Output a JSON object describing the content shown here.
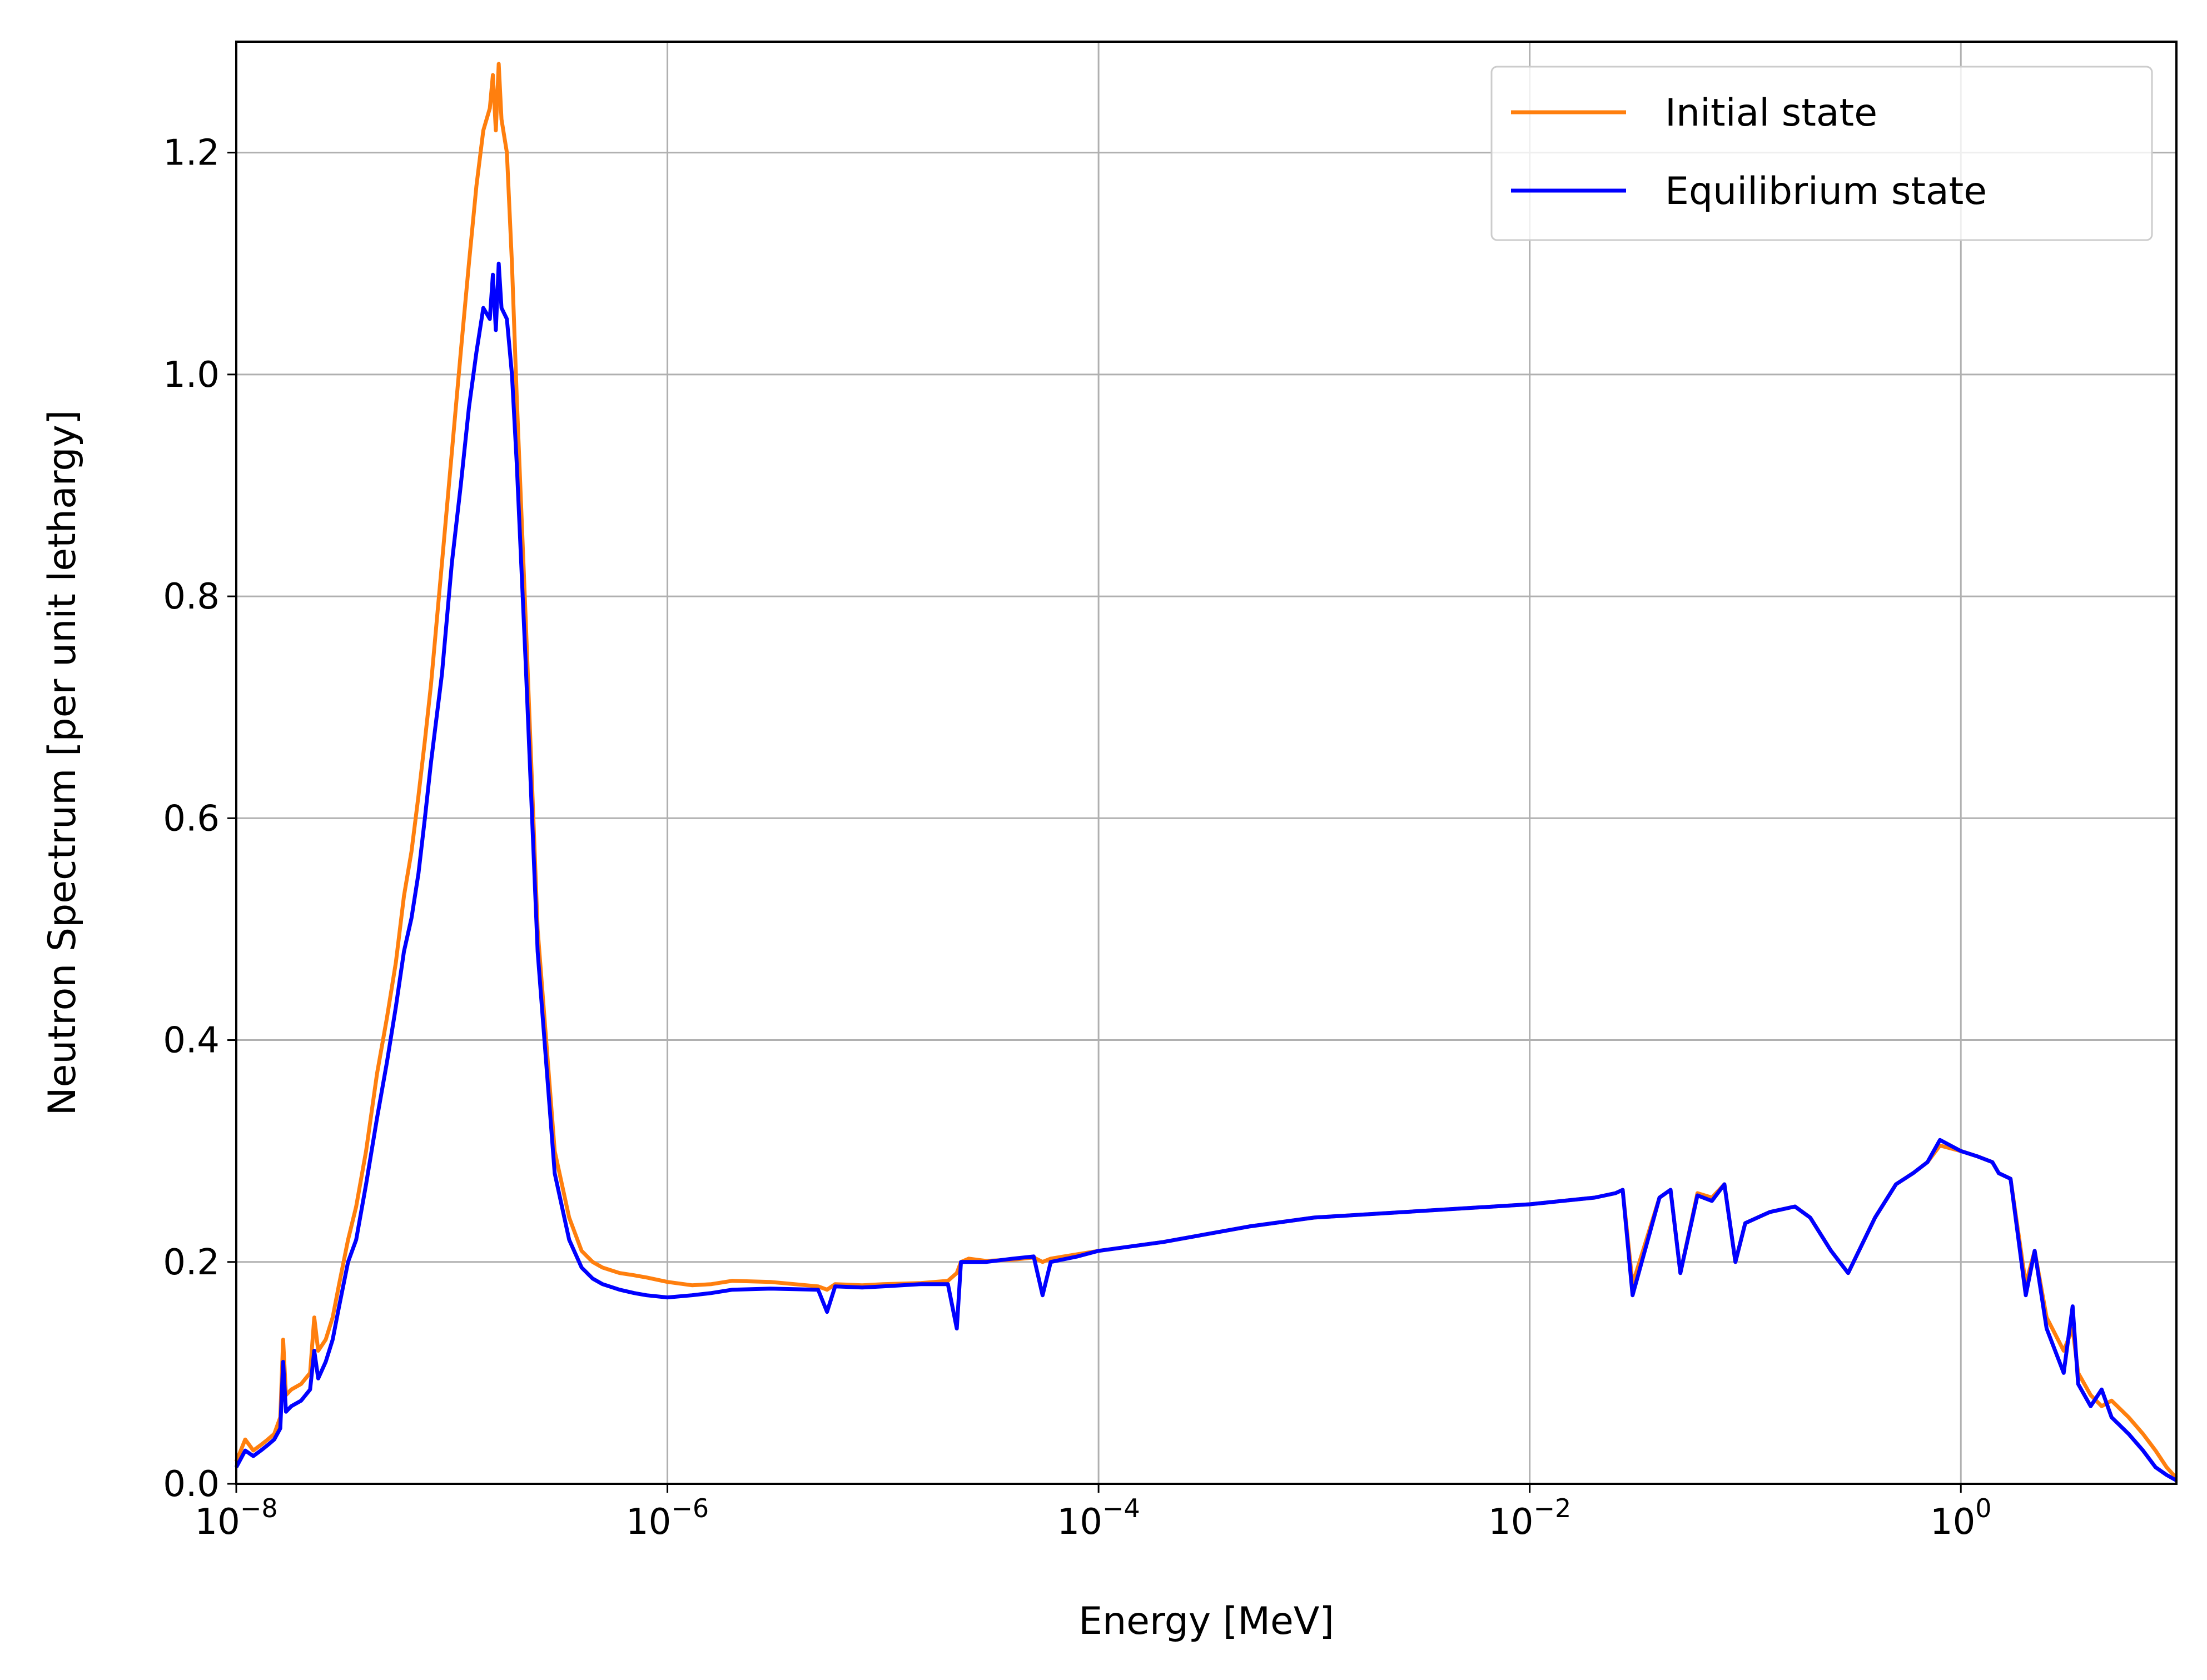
{
  "chart_data": {
    "type": "line",
    "title": "",
    "xlabel": "Energy [MeV]",
    "ylabel": "Neutron Spectrum [per unit lethargy]",
    "xscale": "log",
    "xlim": [
      1e-08,
      10
    ],
    "ylim": [
      0,
      1.3
    ],
    "grid": true,
    "legend_position": "top-right",
    "x_ticks": [
      {
        "base": "10",
        "exp": "−8"
      },
      {
        "base": "10",
        "exp": "−6"
      },
      {
        "base": "10",
        "exp": "−4"
      },
      {
        "base": "10",
        "exp": "−2"
      },
      {
        "base": "10",
        "exp": "0"
      }
    ],
    "y_ticks": [
      "0.0",
      "0.2",
      "0.4",
      "0.6",
      "0.8",
      "1.0",
      "1.2"
    ],
    "series": [
      {
        "name": "Initial state",
        "color": "#ff7f0e",
        "x": [
          1e-08,
          1.1e-08,
          1.2e-08,
          1.3e-08,
          1.4e-08,
          1.5e-08,
          1.6e-08,
          1.65e-08,
          1.7e-08,
          1.8e-08,
          2e-08,
          2.2e-08,
          2.3e-08,
          2.4e-08,
          2.6e-08,
          2.8e-08,
          3e-08,
          3.3e-08,
          3.6e-08,
          4e-08,
          4.5e-08,
          5e-08,
          5.5e-08,
          6e-08,
          6.5e-08,
          7e-08,
          7.5e-08,
          8e-08,
          9e-08,
          1e-07,
          1.1e-07,
          1.2e-07,
          1.3e-07,
          1.4e-07,
          1.5e-07,
          1.55e-07,
          1.6e-07,
          1.65e-07,
          1.7e-07,
          1.8e-07,
          1.9e-07,
          2e-07,
          2.2e-07,
          2.5e-07,
          3e-07,
          3.5e-07,
          4e-07,
          4.5e-07,
          5e-07,
          6e-07,
          7e-07,
          8e-07,
          1e-06,
          1.3e-06,
          1.6e-06,
          2e-06,
          3e-06,
          5e-06,
          5.5e-06,
          6e-06,
          8e-06,
          1e-05,
          1.5e-05,
          2e-05,
          2.2e-05,
          2.3e-05,
          2.5e-05,
          3e-05,
          4e-05,
          5e-05,
          5.5e-05,
          6e-05,
          8e-05,
          0.0001,
          0.0002,
          0.0005,
          0.001,
          0.01,
          0.02,
          0.025,
          0.027,
          0.03,
          0.04,
          0.045,
          0.05,
          0.06,
          0.07,
          0.08,
          0.09,
          0.1,
          0.13,
          0.17,
          0.2,
          0.25,
          0.3,
          0.4,
          0.5,
          0.6,
          0.7,
          0.8,
          1,
          1.2,
          1.4,
          1.5,
          1.7,
          2,
          2.2,
          2.5,
          3,
          3.3,
          3.5,
          4,
          4.5,
          5,
          6,
          7,
          8,
          9,
          10
        ],
        "y": [
          0.02,
          0.04,
          0.03,
          0.035,
          0.04,
          0.045,
          0.06,
          0.13,
          0.08,
          0.085,
          0.09,
          0.1,
          0.15,
          0.12,
          0.13,
          0.15,
          0.18,
          0.22,
          0.25,
          0.3,
          0.37,
          0.42,
          0.47,
          0.53,
          0.57,
          0.62,
          0.67,
          0.72,
          0.83,
          0.93,
          1.02,
          1.1,
          1.17,
          1.22,
          1.24,
          1.27,
          1.22,
          1.28,
          1.23,
          1.2,
          1.1,
          0.98,
          0.78,
          0.5,
          0.3,
          0.24,
          0.21,
          0.2,
          0.195,
          0.19,
          0.188,
          0.186,
          0.182,
          0.179,
          0.18,
          0.183,
          0.182,
          0.178,
          0.175,
          0.18,
          0.179,
          0.18,
          0.181,
          0.183,
          0.19,
          0.2,
          0.203,
          0.201,
          0.202,
          0.204,
          0.2,
          0.203,
          0.207,
          0.21,
          0.218,
          0.232,
          0.24,
          0.252,
          0.258,
          0.262,
          0.265,
          0.18,
          0.258,
          0.265,
          0.19,
          0.262,
          0.258,
          0.27,
          0.2,
          0.235,
          0.245,
          0.25,
          0.24,
          0.21,
          0.19,
          0.24,
          0.27,
          0.28,
          0.29,
          0.305,
          0.3,
          0.295,
          0.29,
          0.28,
          0.275,
          0.18,
          0.21,
          0.15,
          0.12,
          0.14,
          0.1,
          0.08,
          0.07,
          0.075,
          0.06,
          0.045,
          0.03,
          0.015,
          0.005
        ]
      },
      {
        "name": "Equilibrium state",
        "color": "#0000ff",
        "x": [
          1e-08,
          1.1e-08,
          1.2e-08,
          1.3e-08,
          1.4e-08,
          1.5e-08,
          1.6e-08,
          1.65e-08,
          1.7e-08,
          1.8e-08,
          2e-08,
          2.2e-08,
          2.3e-08,
          2.4e-08,
          2.6e-08,
          2.8e-08,
          3e-08,
          3.3e-08,
          3.6e-08,
          4e-08,
          4.5e-08,
          5e-08,
          5.5e-08,
          6e-08,
          6.5e-08,
          7e-08,
          7.5e-08,
          8e-08,
          9e-08,
          1e-07,
          1.1e-07,
          1.2e-07,
          1.3e-07,
          1.4e-07,
          1.5e-07,
          1.55e-07,
          1.6e-07,
          1.65e-07,
          1.7e-07,
          1.8e-07,
          1.9e-07,
          2e-07,
          2.2e-07,
          2.5e-07,
          3e-07,
          3.5e-07,
          4e-07,
          4.5e-07,
          5e-07,
          6e-07,
          7e-07,
          8e-07,
          1e-06,
          1.3e-06,
          1.6e-06,
          2e-06,
          3e-06,
          5e-06,
          5.5e-06,
          6e-06,
          8e-06,
          1e-05,
          1.5e-05,
          2e-05,
          2.2e-05,
          2.3e-05,
          2.5e-05,
          3e-05,
          4e-05,
          5e-05,
          5.5e-05,
          6e-05,
          8e-05,
          0.0001,
          0.0002,
          0.0005,
          0.001,
          0.01,
          0.02,
          0.025,
          0.027,
          0.03,
          0.04,
          0.045,
          0.05,
          0.06,
          0.07,
          0.08,
          0.09,
          0.1,
          0.13,
          0.17,
          0.2,
          0.25,
          0.3,
          0.4,
          0.5,
          0.6,
          0.7,
          0.8,
          1,
          1.2,
          1.4,
          1.5,
          1.7,
          2,
          2.2,
          2.5,
          3,
          3.3,
          3.5,
          4,
          4.5,
          5,
          6,
          7,
          8,
          9,
          10
        ],
        "y": [
          0.015,
          0.03,
          0.025,
          0.03,
          0.035,
          0.04,
          0.05,
          0.11,
          0.065,
          0.07,
          0.075,
          0.085,
          0.12,
          0.095,
          0.11,
          0.13,
          0.16,
          0.2,
          0.22,
          0.27,
          0.33,
          0.38,
          0.43,
          0.48,
          0.51,
          0.55,
          0.6,
          0.65,
          0.73,
          0.83,
          0.9,
          0.97,
          1.02,
          1.06,
          1.05,
          1.09,
          1.04,
          1.1,
          1.06,
          1.05,
          1.0,
          0.92,
          0.74,
          0.48,
          0.28,
          0.22,
          0.195,
          0.185,
          0.18,
          0.175,
          0.172,
          0.17,
          0.168,
          0.17,
          0.172,
          0.175,
          0.176,
          0.175,
          0.155,
          0.178,
          0.177,
          0.178,
          0.18,
          0.18,
          0.14,
          0.2,
          0.2,
          0.2,
          0.203,
          0.205,
          0.17,
          0.2,
          0.205,
          0.21,
          0.218,
          0.232,
          0.24,
          0.252,
          0.258,
          0.262,
          0.265,
          0.17,
          0.258,
          0.265,
          0.19,
          0.26,
          0.255,
          0.27,
          0.2,
          0.235,
          0.245,
          0.25,
          0.24,
          0.21,
          0.19,
          0.24,
          0.27,
          0.28,
          0.29,
          0.31,
          0.3,
          0.295,
          0.29,
          0.28,
          0.275,
          0.17,
          0.21,
          0.14,
          0.1,
          0.16,
          0.09,
          0.07,
          0.085,
          0.06,
          0.045,
          0.03,
          0.015,
          0.008,
          0.003
        ]
      }
    ]
  }
}
